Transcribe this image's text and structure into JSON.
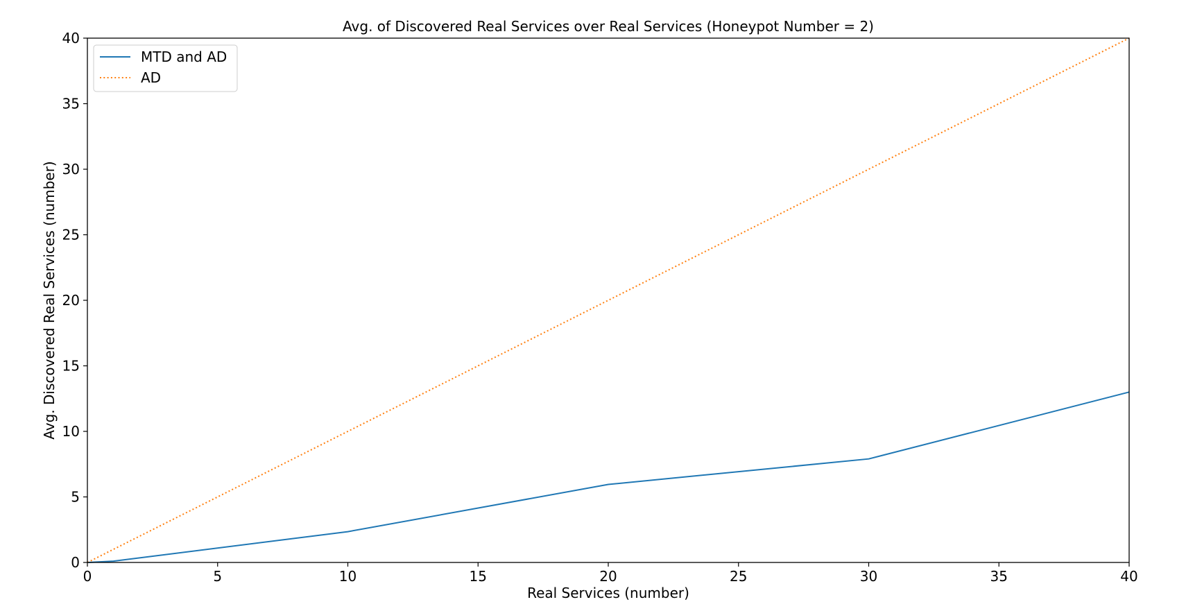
{
  "chart_data": {
    "type": "line",
    "title": "Avg. of Discovered Real Services over Real Services (Honeypot Number = 2)",
    "xlabel": "Real Services (number)",
    "ylabel": "Avg. Discovered Real Services (number)",
    "xlim": [
      0,
      40
    ],
    "ylim": [
      0,
      40
    ],
    "xticks": [
      0,
      5,
      10,
      15,
      20,
      25,
      30,
      35,
      40
    ],
    "yticks": [
      0,
      5,
      10,
      15,
      20,
      25,
      30,
      35,
      40
    ],
    "grid": false,
    "legend_position": "top-left",
    "series": [
      {
        "name": "MTD and AD",
        "color": "#1f77b4",
        "style": "solid",
        "points": [
          {
            "x": 0,
            "y": 0
          },
          {
            "x": 1,
            "y": 0.1
          },
          {
            "x": 10,
            "y": 2.35
          },
          {
            "x": 20,
            "y": 5.95
          },
          {
            "x": 30,
            "y": 7.9
          },
          {
            "x": 40,
            "y": 13.0
          }
        ]
      },
      {
        "name": "AD",
        "color": "#ff7f0e",
        "style": "dotted",
        "points": [
          {
            "x": 0,
            "y": 0
          },
          {
            "x": 40,
            "y": 40
          }
        ]
      }
    ]
  }
}
